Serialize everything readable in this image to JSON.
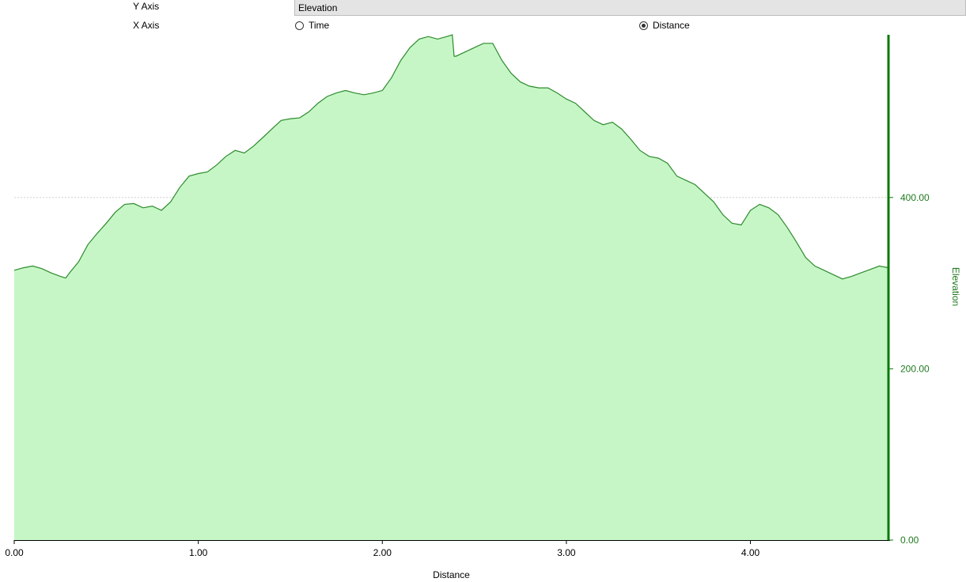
{
  "controls": {
    "y_axis_label": "Y Axis",
    "y_axis_value": "Elevation",
    "x_axis_label": "X Axis",
    "x_axis_options": [
      {
        "label": "Time",
        "selected": false
      },
      {
        "label": "Distance",
        "selected": true
      }
    ]
  },
  "colors": {
    "line": "#2e8b2e",
    "fill": "#c6f6c6",
    "y_axis": "#0a7a0a",
    "y_axis_text": "#1f7a1f",
    "grid": "#d0d0d0"
  },
  "chart_data": {
    "type": "area",
    "title": "",
    "xlabel": "Distance",
    "ylabel": "Elevation",
    "xlim": [
      0,
      4.75
    ],
    "ylim": [
      0,
      590
    ],
    "x_ticks": [
      "0.00",
      "1.00",
      "2.00",
      "3.00",
      "4.00"
    ],
    "y_ticks": [
      "0.00",
      "200.00",
      "400.00"
    ],
    "grid": true,
    "y_axis_position": "right",
    "series": [
      {
        "x": [
          0.0,
          0.05,
          0.1,
          0.15,
          0.2,
          0.25,
          0.28,
          0.3,
          0.35,
          0.4,
          0.45,
          0.5,
          0.55,
          0.6,
          0.65,
          0.7,
          0.75,
          0.8,
          0.85,
          0.9,
          0.95,
          1.0,
          1.05,
          1.1,
          1.15,
          1.2,
          1.25,
          1.3,
          1.35,
          1.4,
          1.45,
          1.5,
          1.55,
          1.6,
          1.65,
          1.7,
          1.75,
          1.8,
          1.85,
          1.9,
          1.95,
          2.0,
          2.05,
          2.1,
          2.15,
          2.2,
          2.25,
          2.3,
          2.35,
          2.38,
          2.39,
          2.4,
          2.45,
          2.5,
          2.55,
          2.6,
          2.65,
          2.7,
          2.75,
          2.8,
          2.85,
          2.9,
          2.95,
          3.0,
          3.05,
          3.1,
          3.15,
          3.2,
          3.25,
          3.3,
          3.35,
          3.4,
          3.45,
          3.5,
          3.55,
          3.6,
          3.65,
          3.7,
          3.75,
          3.8,
          3.85,
          3.9,
          3.95,
          4.0,
          4.05,
          4.1,
          4.15,
          4.2,
          4.25,
          4.3,
          4.35,
          4.4,
          4.45,
          4.5,
          4.55,
          4.6,
          4.65,
          4.7,
          4.75
        ],
        "y": [
          315,
          318,
          320,
          317,
          312,
          308,
          306,
          312,
          325,
          345,
          358,
          370,
          383,
          392,
          393,
          388,
          390,
          385,
          395,
          412,
          425,
          428,
          430,
          438,
          448,
          455,
          452,
          460,
          470,
          480,
          490,
          492,
          493,
          500,
          510,
          518,
          522,
          525,
          522,
          520,
          522,
          525,
          540,
          560,
          575,
          585,
          588,
          585,
          588,
          590,
          565,
          565,
          570,
          575,
          580,
          580,
          560,
          545,
          535,
          530,
          528,
          528,
          522,
          515,
          510,
          500,
          490,
          485,
          488,
          480,
          468,
          455,
          448,
          446,
          440,
          425,
          420,
          415,
          405,
          395,
          380,
          370,
          368,
          385,
          392,
          388,
          380,
          365,
          348,
          330,
          320,
          315,
          310,
          305,
          308,
          312,
          316,
          320,
          318
        ]
      }
    ]
  }
}
